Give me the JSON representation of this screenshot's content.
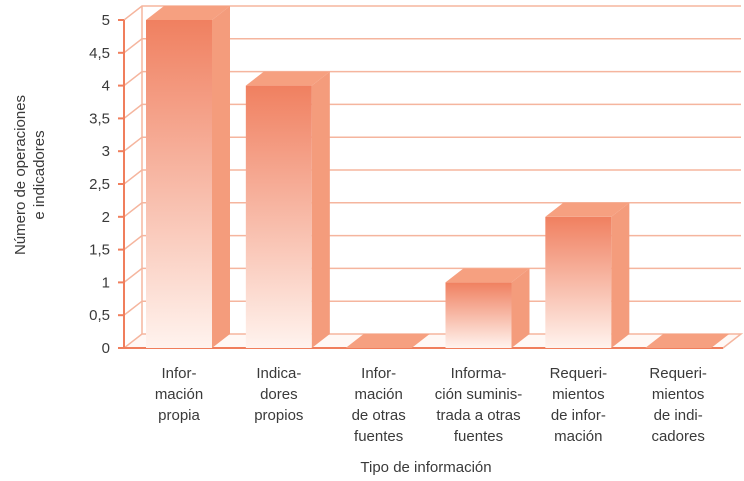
{
  "chart_data": {
    "type": "bar",
    "title": "",
    "xlabel": "Tipo de información",
    "ylabel_lines": [
      "Número de operaciones",
      "e indicadores"
    ],
    "ylim": [
      0,
      5
    ],
    "yticks": [
      "0",
      "0,5",
      "1",
      "1,5",
      "2",
      "2,5",
      "3",
      "3,5",
      "4",
      "4,5",
      "5"
    ],
    "categories": [
      {
        "lines": [
          "Infor-",
          "mación",
          "propia"
        ]
      },
      {
        "lines": [
          "Indica-",
          "dores",
          "propios"
        ]
      },
      {
        "lines": [
          "Infor-",
          "mación",
          "de otras",
          "fuentes"
        ]
      },
      {
        "lines": [
          "Informa-",
          "ción suminis-",
          "trada a otras",
          "fuentes"
        ]
      },
      {
        "lines": [
          "Requeri-",
          "mientos",
          "de infor-",
          "mación"
        ]
      },
      {
        "lines": [
          "Requeri-",
          "mientos",
          "de indi-",
          "cadores"
        ]
      }
    ],
    "values": [
      5,
      4,
      0,
      1,
      2,
      0
    ],
    "grid": true,
    "colors": {
      "bar_top": "#f08060",
      "bar_bottom": "#fff3ee",
      "bar_side": "#f49c7c",
      "bar_cap": "#f6a080",
      "grid": "#f5b59e",
      "axis": "#f07e5c"
    }
  }
}
